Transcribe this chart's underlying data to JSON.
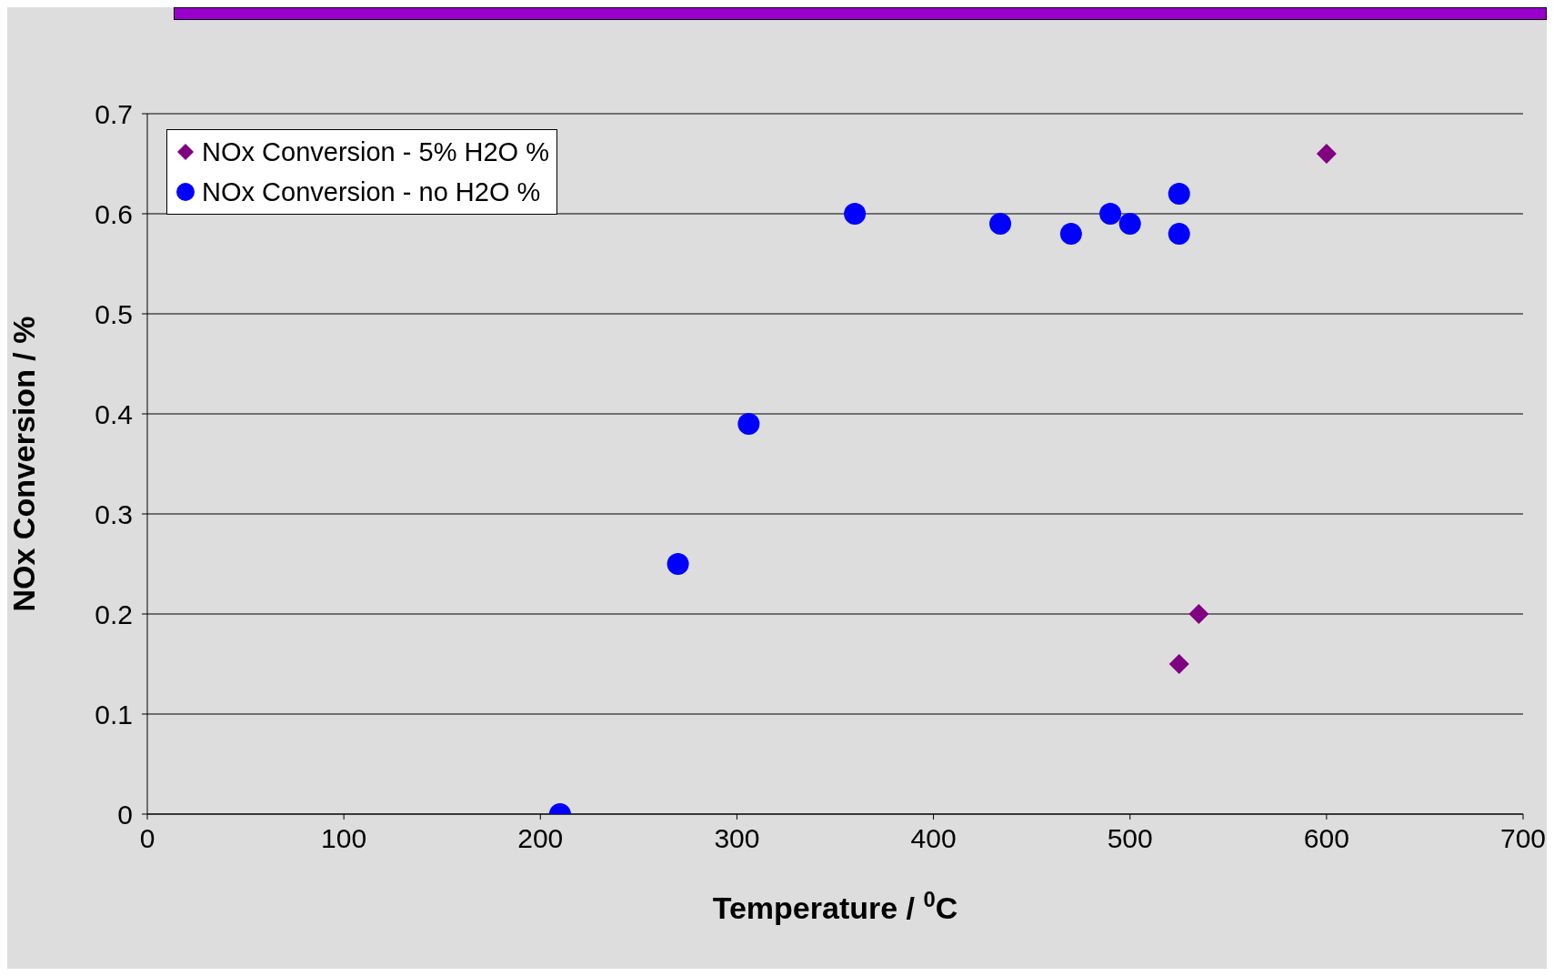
{
  "chart_data": {
    "type": "scatter",
    "xlabel": "Temperature / $^{0}$C",
    "ylabel": "NOx Conversion / %",
    "xlim": [
      0,
      700
    ],
    "xticks": [
      0,
      100,
      200,
      300,
      400,
      500,
      600,
      700
    ],
    "ylim": [
      0,
      0.7
    ],
    "yticks": [
      0,
      0.1,
      0.2,
      0.3,
      0.4,
      0.5,
      0.6,
      0.7
    ],
    "grid": "y",
    "legend": "top left",
    "series": [
      {
        "name": "NOx Conversion - 5% H2O %",
        "color": "#800080",
        "marker": "diamond",
        "x": [
          525,
          535,
          600
        ],
        "values": [
          0.15,
          0.2,
          0.66
        ]
      },
      {
        "name": "NOx Conversion - no H2O %",
        "color": "#0000ff",
        "marker": "circle",
        "x": [
          210,
          270,
          306,
          360,
          434,
          470,
          490,
          500,
          525,
          525
        ],
        "values": [
          0,
          0.25,
          0.39,
          0.6,
          0.59,
          0.58,
          0.6,
          0.59,
          0.62,
          0.58
        ]
      }
    ]
  }
}
